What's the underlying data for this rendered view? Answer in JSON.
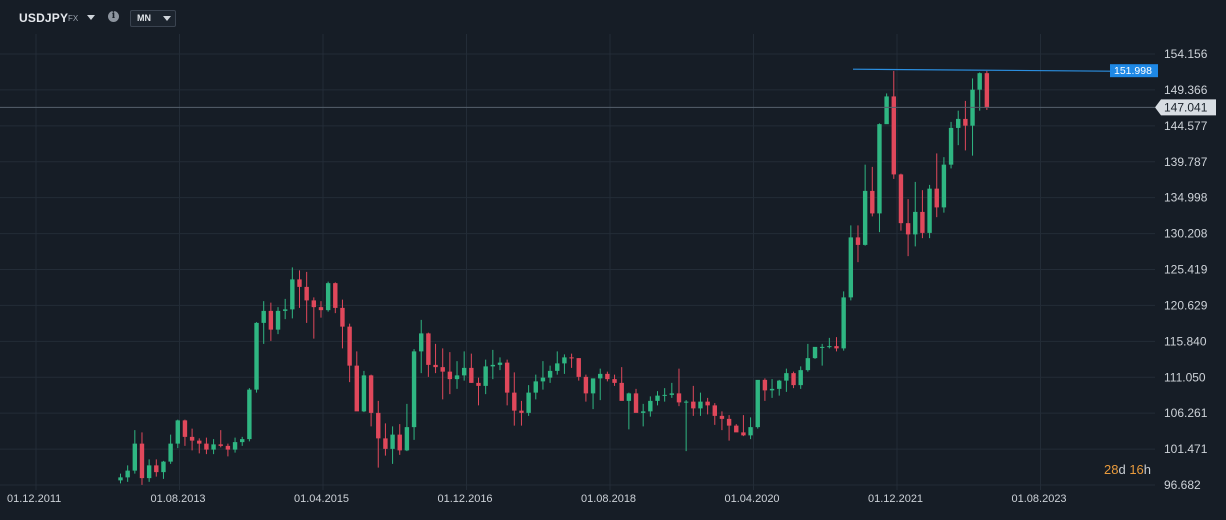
{
  "header": {
    "symbol": "USDJPY",
    "symbol_type": "FX",
    "info_glyph": "i",
    "timeframe": "MN"
  },
  "countdown": {
    "days_value": "28",
    "days_unit": "d",
    "hours_value": "16",
    "hours_unit": "h"
  },
  "colors": {
    "background": "#161d26",
    "grid": "#232c37",
    "up": "#2fb682",
    "down": "#e0485b",
    "current_price_line": "#56616d",
    "level_line": "#2b8fe0"
  },
  "chart_data": {
    "type": "candlestick",
    "symbol": "USDJPY",
    "timeframe": "MN",
    "y_ticks": [
      "154.156",
      "149.366",
      "144.577",
      "139.787",
      "134.998",
      "130.208",
      "125.419",
      "120.629",
      "115.840",
      "111.050",
      "106.261",
      "101.471",
      "96.682"
    ],
    "y_range": [
      96.682,
      154.156
    ],
    "x_ticks": [
      "01.12.2011",
      "01.08.2013",
      "01.04.2015",
      "01.12.2016",
      "01.08.2018",
      "01.04.2020",
      "01.12.2021",
      "01.08.2023"
    ],
    "current_price": "147.041",
    "level_line": {
      "label": "151.998",
      "value": 151.998
    },
    "candles_ohlc": [
      [
        97.3,
        98.2,
        96.9,
        97.7
      ],
      [
        97.7,
        99.3,
        97.1,
        98.6
      ],
      [
        98.6,
        104.0,
        98.2,
        102.2
      ],
      [
        102.2,
        103.7,
        96.7,
        97.6
      ],
      [
        97.6,
        100.1,
        97.1,
        99.3
      ],
      [
        99.3,
        100.1,
        97.8,
        98.4
      ],
      [
        98.4,
        99.9,
        97.5,
        99.8
      ],
      [
        99.8,
        103.4,
        99.5,
        102.2
      ],
      [
        102.2,
        105.4,
        101.6,
        105.3
      ],
      [
        105.3,
        105.4,
        101.9,
        103.1
      ],
      [
        103.1,
        104.2,
        101.3,
        102.6
      ],
      [
        102.6,
        102.9,
        100.9,
        102.2
      ],
      [
        102.2,
        103.0,
        100.8,
        101.4
      ],
      [
        101.4,
        102.8,
        100.8,
        102.1
      ],
      [
        102.1,
        104.0,
        101.7,
        101.9
      ],
      [
        101.9,
        102.2,
        100.5,
        101.4
      ],
      [
        101.4,
        103.0,
        101.0,
        102.4
      ],
      [
        102.4,
        103.1,
        101.9,
        102.8
      ],
      [
        102.8,
        109.6,
        102.5,
        109.4
      ],
      [
        109.4,
        118.4,
        109.0,
        118.3
      ],
      [
        118.3,
        121.2,
        115.5,
        119.9
      ],
      [
        119.9,
        121.0,
        115.9,
        117.4
      ],
      [
        117.4,
        120.4,
        116.8,
        119.9
      ],
      [
        119.9,
        121.5,
        118.8,
        120.1
      ],
      [
        120.1,
        125.7,
        118.9,
        124.1
      ],
      [
        124.1,
        125.3,
        120.3,
        123.1
      ],
      [
        123.1,
        125.1,
        118.3,
        121.3
      ],
      [
        121.3,
        121.7,
        116.2,
        120.4
      ],
      [
        120.4,
        121.2,
        119.0,
        120.0
      ],
      [
        120.0,
        123.8,
        119.8,
        123.6
      ],
      [
        123.6,
        123.7,
        119.6,
        120.3
      ],
      [
        120.3,
        121.4,
        114.9,
        117.8
      ],
      [
        117.8,
        118.2,
        110.4,
        112.6
      ],
      [
        112.6,
        114.5,
        107.6,
        106.5
      ],
      [
        106.5,
        111.9,
        106.4,
        111.3
      ],
      [
        111.3,
        111.4,
        104.5,
        106.3
      ],
      [
        106.3,
        107.9,
        99.0,
        102.9
      ],
      [
        102.9,
        104.9,
        100.6,
        101.5
      ],
      [
        101.5,
        104.5,
        99.5,
        103.4
      ],
      [
        103.4,
        104.8,
        100.7,
        101.3
      ],
      [
        101.3,
        107.5,
        101.2,
        104.4
      ],
      [
        104.4,
        114.8,
        102.7,
        114.5
      ],
      [
        114.5,
        118.7,
        111.6,
        116.9
      ],
      [
        116.9,
        117.0,
        111.1,
        112.7
      ],
      [
        112.7,
        115.5,
        111.6,
        112.4
      ],
      [
        112.4,
        114.9,
        108.1,
        111.8
      ],
      [
        111.8,
        114.4,
        108.8,
        110.8
      ],
      [
        110.8,
        113.2,
        109.5,
        111.3
      ],
      [
        111.3,
        114.5,
        110.6,
        112.3
      ],
      [
        112.3,
        114.2,
        110.3,
        110.3
      ],
      [
        110.3,
        111.0,
        107.3,
        109.9
      ],
      [
        109.9,
        113.4,
        108.8,
        112.5
      ],
      [
        112.5,
        114.7,
        110.8,
        112.7
      ],
      [
        112.7,
        113.7,
        112.0,
        113.0
      ],
      [
        113.0,
        113.4,
        107.3,
        109.0
      ],
      [
        109.0,
        111.7,
        104.6,
        106.6
      ],
      [
        106.6,
        107.9,
        104.6,
        106.3
      ],
      [
        106.3,
        110.0,
        105.9,
        109.0
      ],
      [
        109.0,
        111.4,
        108.1,
        110.5
      ],
      [
        110.5,
        113.2,
        109.4,
        111.0
      ],
      [
        111.0,
        112.6,
        110.3,
        111.9
      ],
      [
        111.9,
        114.5,
        111.4,
        112.9
      ],
      [
        112.9,
        114.1,
        111.5,
        113.7
      ],
      [
        113.7,
        114.2,
        112.3,
        113.6
      ],
      [
        113.6,
        113.6,
        110.6,
        111.1
      ],
      [
        111.1,
        111.4,
        107.8,
        108.9
      ],
      [
        108.9,
        110.7,
        106.8,
        110.9
      ],
      [
        110.9,
        112.2,
        108.0,
        111.5
      ],
      [
        111.5,
        111.8,
        110.5,
        110.8
      ],
      [
        110.8,
        111.4,
        109.9,
        110.3
      ],
      [
        110.3,
        112.4,
        109.8,
        107.9
      ],
      [
        107.9,
        109.0,
        104.1,
        108.9
      ],
      [
        108.9,
        109.5,
        107.3,
        106.3
      ],
      [
        106.3,
        107.5,
        104.5,
        106.5
      ],
      [
        106.5,
        108.5,
        105.8,
        107.9
      ],
      [
        107.9,
        109.2,
        107.3,
        108.6
      ],
      [
        108.6,
        109.6,
        107.8,
        108.7
      ],
      [
        108.7,
        110.3,
        108.3,
        108.9
      ],
      [
        108.9,
        112.2,
        107.2,
        107.7
      ],
      [
        107.7,
        108.0,
        101.2,
        107.8
      ],
      [
        107.8,
        109.9,
        105.9,
        106.9
      ],
      [
        106.9,
        109.0,
        105.9,
        107.8
      ],
      [
        107.8,
        108.3,
        106.1,
        107.3
      ],
      [
        107.3,
        107.6,
        104.7,
        105.9
      ],
      [
        105.9,
        106.5,
        104.0,
        105.5
      ],
      [
        105.5,
        106.0,
        102.6,
        104.6
      ],
      [
        104.6,
        104.8,
        103.8,
        103.7
      ],
      [
        103.7,
        106.0,
        103.2,
        103.3
      ],
      [
        103.3,
        105.7,
        102.8,
        104.4
      ],
      [
        104.4,
        110.5,
        104.2,
        110.7
      ],
      [
        110.7,
        110.9,
        107.9,
        109.3
      ],
      [
        109.3,
        110.8,
        108.3,
        109.5
      ],
      [
        109.5,
        110.7,
        108.6,
        110.6
      ],
      [
        110.6,
        112.2,
        109.1,
        111.6
      ],
      [
        111.6,
        111.8,
        109.6,
        110.0
      ],
      [
        110.0,
        112.5,
        109.5,
        112.0
      ],
      [
        112.0,
        115.5,
        111.8,
        113.6
      ],
      [
        113.6,
        114.4,
        113.5,
        115.1
      ],
      [
        115.1,
        115.5,
        112.6,
        115.1
      ],
      [
        115.1,
        116.3,
        114.9,
        115.2
      ],
      [
        115.2,
        116.4,
        114.5,
        114.9
      ],
      [
        114.9,
        122.5,
        114.6,
        121.7
      ],
      [
        121.7,
        131.3,
        121.3,
        129.7
      ],
      [
        129.7,
        131.3,
        126.4,
        128.7
      ],
      [
        128.7,
        139.4,
        128.6,
        135.9
      ],
      [
        135.9,
        139.1,
        132.5,
        132.9
      ],
      [
        132.9,
        144.9,
        130.4,
        144.8
      ],
      [
        144.8,
        148.9,
        145.0,
        148.5
      ],
      [
        148.5,
        151.9,
        137.5,
        138.1
      ],
      [
        138.1,
        138.2,
        130.6,
        131.6
      ],
      [
        131.6,
        134.8,
        127.2,
        130.1
      ],
      [
        130.1,
        137.1,
        128.5,
        133.1
      ],
      [
        133.1,
        136.0,
        129.6,
        130.3
      ],
      [
        130.3,
        136.7,
        129.6,
        136.2
      ],
      [
        136.2,
        140.9,
        132.4,
        133.7
      ],
      [
        133.7,
        140.4,
        133.0,
        139.4
      ],
      [
        139.4,
        145.1,
        138.9,
        144.3
      ],
      [
        144.3,
        146.6,
        142.0,
        145.5
      ],
      [
        145.5,
        147.9,
        141.3,
        144.6
      ],
      [
        144.6,
        150.9,
        140.6,
        149.4
      ],
      [
        149.4,
        151.7,
        146.6,
        151.6
      ],
      [
        151.6,
        151.9,
        146.7,
        147.0
      ]
    ]
  }
}
